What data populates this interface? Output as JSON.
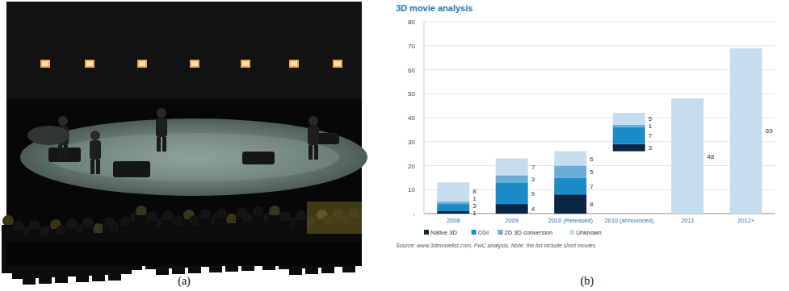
{
  "captions": [
    "(a)",
    "(b)"
  ],
  "chart_data": {
    "type": "bar",
    "title": "3D movie analysis",
    "categories": [
      "2008",
      "2009",
      "2010 (Released)",
      "2010 (announced)",
      "2011",
      "2012+"
    ],
    "bar_bases": [
      0,
      0,
      0,
      26,
      0,
      0
    ],
    "series": [
      {
        "name": "Native 3D",
        "color": "#0b2545",
        "values": [
          1,
          4,
          8,
          3,
          null,
          null
        ]
      },
      {
        "name": "CGI",
        "color": "#1a8cc8",
        "values": [
          3,
          9,
          7,
          7,
          null,
          null
        ]
      },
      {
        "name": "2D 3D conversion",
        "color": "#6aaed8",
        "values": [
          1,
          3,
          5,
          1,
          null,
          null
        ]
      },
      {
        "name": "Unknown",
        "color": "#c6dcef",
        "values": [
          8,
          7,
          6,
          5,
          48,
          69
        ]
      }
    ],
    "stacked": true,
    "data_labels": true,
    "grid": true,
    "legend": "bottom",
    "ylim": [
      0,
      80
    ],
    "yticks": [
      {
        "value": 0,
        "label": "-"
      },
      10,
      20,
      30,
      40,
      50,
      60,
      70,
      80
    ],
    "source": "Source: www.3dmovielist.com, PwC analysis. Note: the list include short movies"
  }
}
